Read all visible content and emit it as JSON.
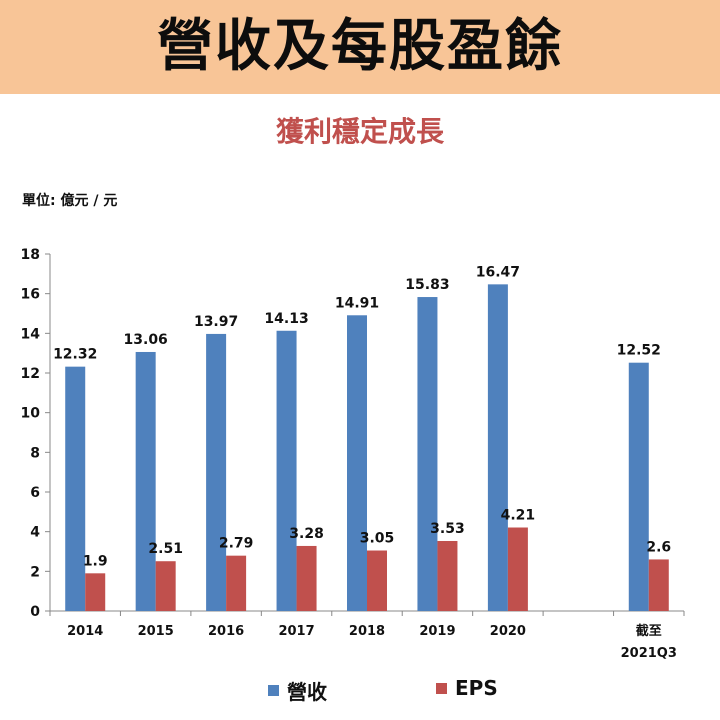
{
  "banner": {
    "title": "營收及每股盈餘"
  },
  "subtitle": "獲利穩定成長",
  "unit_label": "單位: 億元 / 元",
  "colors": {
    "banner_bg": "#f8c597",
    "revenue": "#4f81bd",
    "eps": "#c0504d",
    "subtitle": "#c0504d"
  },
  "chart_data": {
    "type": "bar",
    "categories": [
      "2014",
      "2015",
      "2016",
      "2017",
      "2018",
      "2019",
      "2020",
      "",
      "截至\n2021Q3"
    ],
    "series": [
      {
        "name": "營收",
        "values": [
          12.32,
          13.06,
          13.97,
          14.13,
          14.91,
          15.83,
          16.47,
          null,
          12.52
        ],
        "color": "#4f81bd"
      },
      {
        "name": "EPS",
        "values": [
          1.9,
          2.51,
          2.79,
          3.28,
          3.05,
          3.53,
          4.21,
          null,
          2.6
        ],
        "color": "#c0504d"
      }
    ],
    "ylim": [
      0,
      18
    ],
    "yticks": [
      0,
      2,
      4,
      6,
      8,
      10,
      12,
      14,
      16,
      18
    ],
    "legend_position": "bottom",
    "grid": false
  }
}
